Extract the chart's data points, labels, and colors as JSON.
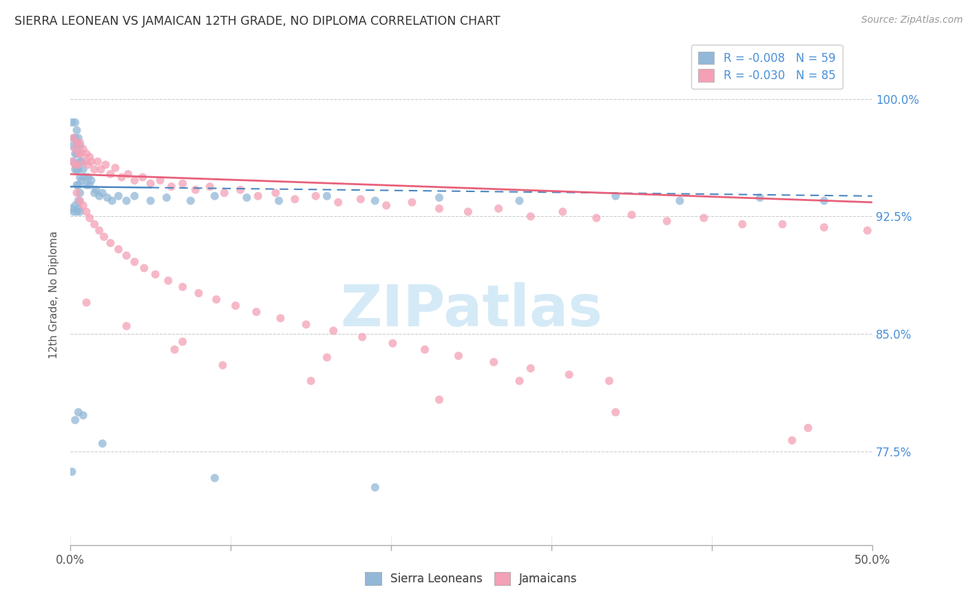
{
  "title": "SIERRA LEONEAN VS JAMAICAN 12TH GRADE, NO DIPLOMA CORRELATION CHART",
  "source": "Source: ZipAtlas.com",
  "ylabel": "12th Grade, No Diploma",
  "yticks": [
    0.775,
    0.85,
    0.925,
    1.0
  ],
  "ytick_labels": [
    "77.5%",
    "85.0%",
    "92.5%",
    "100.0%"
  ],
  "xlim": [
    0.0,
    0.5
  ],
  "ylim": [
    0.715,
    1.035
  ],
  "sierra_R": -0.008,
  "sierra_N": 59,
  "jamaican_R": -0.03,
  "jamaican_N": 85,
  "sierra_color": "#92b8d8",
  "jamaican_color": "#f4a0b5",
  "sierra_line_color": "#4a86c0",
  "jamaican_line_color": "#e8607a",
  "background_color": "#ffffff",
  "watermark_text": "ZIPatlas",
  "watermark_color": "#d5eaf7",
  "legend_label_sierra": "Sierra Leoneans",
  "legend_label_jamaican": "Jamaicans",
  "sierra_x": [
    0.001,
    0.001,
    0.002,
    0.002,
    0.003,
    0.003,
    0.003,
    0.003,
    0.004,
    0.004,
    0.004,
    0.004,
    0.004,
    0.005,
    0.005,
    0.005,
    0.005,
    0.005,
    0.006,
    0.006,
    0.006,
    0.006,
    0.007,
    0.007,
    0.008,
    0.009,
    0.01,
    0.011,
    0.012,
    0.013,
    0.015,
    0.016,
    0.018,
    0.02,
    0.023,
    0.026,
    0.03,
    0.035,
    0.04,
    0.05,
    0.06,
    0.075,
    0.09,
    0.11,
    0.13,
    0.16,
    0.19,
    0.23,
    0.28,
    0.34,
    0.38,
    0.43,
    0.47,
    0.001,
    0.002,
    0.003,
    0.004,
    0.005,
    0.006
  ],
  "sierra_y": [
    0.985,
    0.97,
    0.975,
    0.96,
    0.985,
    0.975,
    0.965,
    0.955,
    0.98,
    0.97,
    0.965,
    0.955,
    0.945,
    0.975,
    0.965,
    0.955,
    0.945,
    0.935,
    0.97,
    0.96,
    0.95,
    0.94,
    0.96,
    0.948,
    0.955,
    0.95,
    0.945,
    0.95,
    0.945,
    0.948,
    0.94,
    0.942,
    0.938,
    0.94,
    0.937,
    0.935,
    0.938,
    0.935,
    0.938,
    0.935,
    0.937,
    0.935,
    0.938,
    0.937,
    0.935,
    0.938,
    0.935,
    0.937,
    0.935,
    0.938,
    0.935,
    0.937,
    0.935,
    0.93,
    0.928,
    0.932,
    0.928,
    0.93,
    0.928
  ],
  "sierra_low_x": [
    0.001,
    0.003,
    0.005,
    0.008,
    0.02,
    0.09,
    0.19
  ],
  "sierra_low_y": [
    0.762,
    0.795,
    0.8,
    0.798,
    0.78,
    0.758,
    0.752
  ],
  "jamaican_x": [
    0.001,
    0.002,
    0.003,
    0.003,
    0.004,
    0.005,
    0.005,
    0.006,
    0.007,
    0.008,
    0.009,
    0.01,
    0.011,
    0.012,
    0.013,
    0.015,
    0.017,
    0.019,
    0.022,
    0.025,
    0.028,
    0.032,
    0.036,
    0.04,
    0.045,
    0.05,
    0.056,
    0.063,
    0.07,
    0.078,
    0.087,
    0.096,
    0.106,
    0.117,
    0.128,
    0.14,
    0.153,
    0.167,
    0.181,
    0.197,
    0.213,
    0.23,
    0.248,
    0.267,
    0.287,
    0.307,
    0.328,
    0.35,
    0.372,
    0.395,
    0.419,
    0.444,
    0.47,
    0.497,
    0.004,
    0.006,
    0.008,
    0.01,
    0.012,
    0.015,
    0.018,
    0.021,
    0.025,
    0.03,
    0.035,
    0.04,
    0.046,
    0.053,
    0.061,
    0.07,
    0.08,
    0.091,
    0.103,
    0.116,
    0.131,
    0.147,
    0.164,
    0.182,
    0.201,
    0.221,
    0.242,
    0.264,
    0.287,
    0.311,
    0.336
  ],
  "jamaican_y": [
    0.96,
    0.975,
    0.968,
    0.958,
    0.972,
    0.965,
    0.958,
    0.972,
    0.965,
    0.968,
    0.96,
    0.965,
    0.958,
    0.963,
    0.96,
    0.955,
    0.96,
    0.955,
    0.958,
    0.952,
    0.956,
    0.95,
    0.952,
    0.948,
    0.95,
    0.946,
    0.948,
    0.944,
    0.946,
    0.942,
    0.944,
    0.94,
    0.942,
    0.938,
    0.94,
    0.936,
    0.938,
    0.934,
    0.936,
    0.932,
    0.934,
    0.93,
    0.928,
    0.93,
    0.925,
    0.928,
    0.924,
    0.926,
    0.922,
    0.924,
    0.92,
    0.92,
    0.918,
    0.916,
    0.94,
    0.935,
    0.932,
    0.928,
    0.924,
    0.92,
    0.916,
    0.912,
    0.908,
    0.904,
    0.9,
    0.896,
    0.892,
    0.888,
    0.884,
    0.88,
    0.876,
    0.872,
    0.868,
    0.864,
    0.86,
    0.856,
    0.852,
    0.848,
    0.844,
    0.84,
    0.836,
    0.832,
    0.828,
    0.824,
    0.82
  ],
  "jamaican_low_x": [
    0.01,
    0.035,
    0.065,
    0.095,
    0.15,
    0.23,
    0.34,
    0.46,
    0.07,
    0.16,
    0.28,
    0.45
  ],
  "jamaican_low_y": [
    0.87,
    0.855,
    0.84,
    0.83,
    0.82,
    0.808,
    0.8,
    0.79,
    0.845,
    0.835,
    0.82,
    0.782
  ],
  "sierra_trend_x": [
    0.0,
    0.5
  ],
  "sierra_trend_y": [
    0.944,
    0.938
  ],
  "jamaican_trend_x": [
    0.0,
    0.5
  ],
  "jamaican_trend_y": [
    0.952,
    0.934
  ]
}
